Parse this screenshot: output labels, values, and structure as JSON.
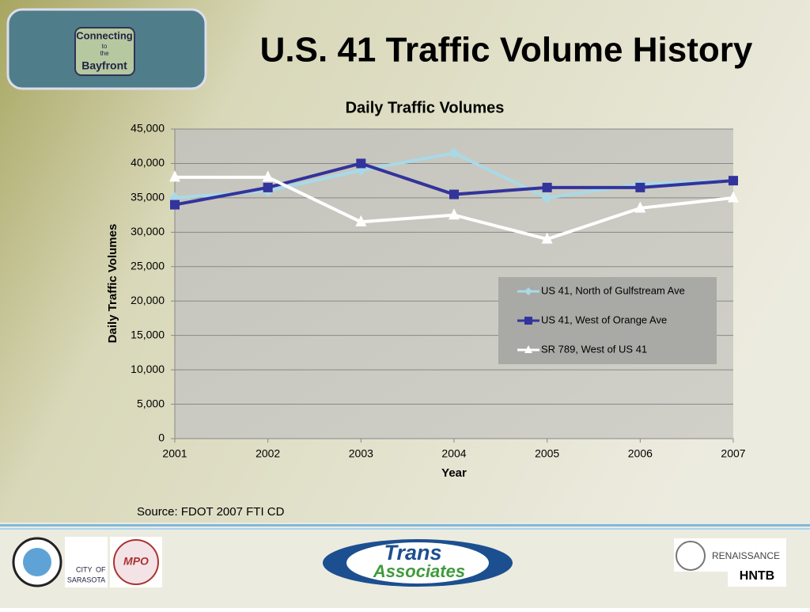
{
  "header": {
    "title": "U.S. 41 Traffic Volume History",
    "logo": [
      "Connecting",
      "to",
      "the",
      "Bayfront"
    ]
  },
  "chart_data": {
    "type": "line",
    "title": "Daily Traffic Volumes",
    "x_label": "Year",
    "y_label": "Daily Traffic Volumes",
    "categories": [
      "2001",
      "2002",
      "2003",
      "2004",
      "2005",
      "2006",
      "2007"
    ],
    "series": [
      {
        "name": "US 41, North of Gulfstream Ave",
        "color": "#a9d9e6",
        "marker": "diamond",
        "values": [
          35000,
          36000,
          39000,
          41500,
          35000,
          37000,
          37500
        ]
      },
      {
        "name": "US 41, West of Orange Ave",
        "color": "#33339c",
        "marker": "square",
        "values": [
          34000,
          36500,
          40000,
          35500,
          36500,
          36500,
          37500
        ]
      },
      {
        "name": "SR 789, West of US 41",
        "color": "#ffffff",
        "marker": "triangle",
        "values": [
          38000,
          38000,
          31500,
          32500,
          29000,
          33500,
          35000
        ]
      }
    ],
    "ylim": [
      0,
      45000
    ],
    "yticks": [
      0,
      {
        "value": 5000,
        "label": "5,000"
      },
      {
        "value": 10000,
        "label": "10,000"
      },
      {
        "value": 15000,
        "label": "15,000"
      },
      {
        "value": 20000,
        "label": "20,000"
      },
      {
        "value": 25000,
        "label": "25,000"
      },
      {
        "value": 30000,
        "label": "30,000"
      },
      {
        "value": 35000,
        "label": "35,000"
      },
      {
        "value": 40000,
        "label": "40,000"
      },
      {
        "value": 45000,
        "label": "45,000"
      }
    ],
    "grid": true,
    "legend": "right"
  },
  "source": "Source: FDOT 2007 FTI CD",
  "footer": {
    "city": [
      "CITY",
      "OF",
      "SARASOTA"
    ],
    "mpo": "MPO",
    "trans": [
      "Trans",
      "Associates"
    ],
    "renaissance": "RENAISSANCE",
    "hntb": "HNTB"
  }
}
